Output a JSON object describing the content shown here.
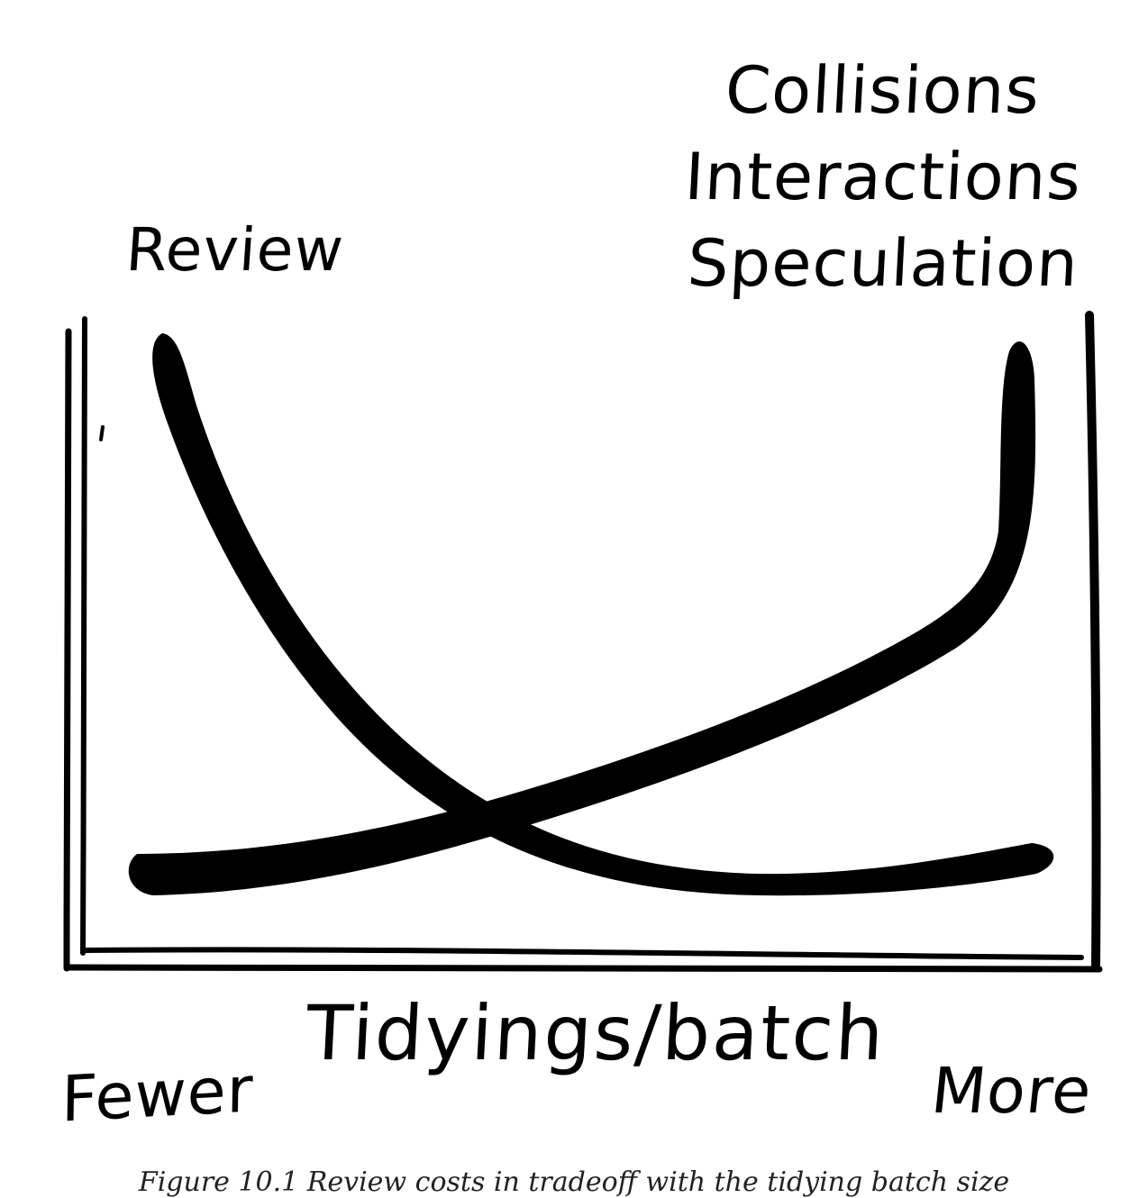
{
  "labels": {
    "review": "Review",
    "right_stack": [
      "Collisions",
      "Interactions",
      "Speculation"
    ],
    "axis_title": "Tidyings/batch",
    "fewer": "Fewer",
    "more": "More"
  },
  "caption": "Figure 10.1 Review costs in tradeoff with the tidying batch size",
  "colors": {
    "ink": "#000000",
    "background": "#ffffff"
  },
  "chart_data": {
    "type": "line",
    "xlabel": "Tidyings/batch",
    "x_ends": [
      "Fewer",
      "More"
    ],
    "series": [
      {
        "name": "Review",
        "trend": "decreasing",
        "shape": "steep drop from high at fewer tidyings to a low plateau at more tidyings"
      },
      {
        "name": "Collisions / Interactions / Speculation",
        "trend": "increasing",
        "shape": "low at fewer tidyings, slow rise, then sharp rise at more tidyings"
      }
    ],
    "grid": false,
    "legend": "none"
  }
}
